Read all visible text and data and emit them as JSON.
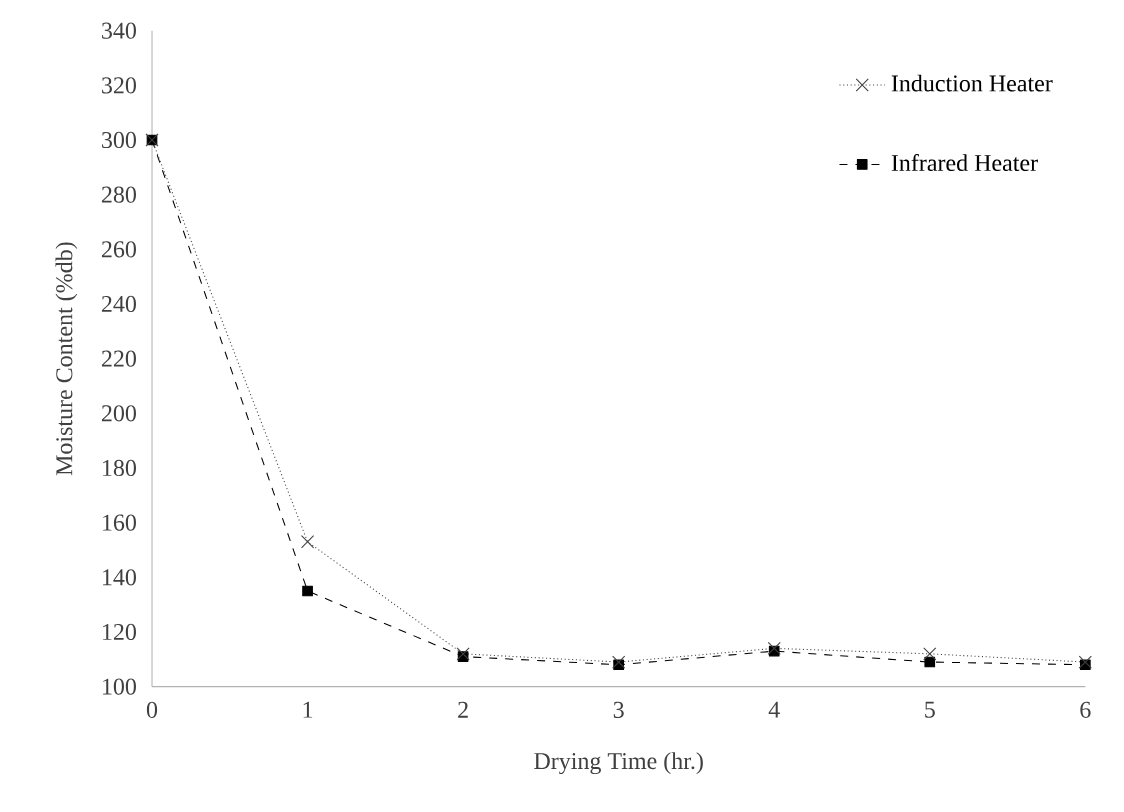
{
  "chart_data": {
    "type": "line",
    "xlabel": "Drying Time (hr.)",
    "ylabel": "Moisture Content (%db)",
    "x": [
      0,
      1,
      2,
      3,
      4,
      5,
      6
    ],
    "series": [
      {
        "name": "Induction Heater",
        "color": "#404040",
        "marker": "cross",
        "line_style": "dotted",
        "values": [
          300,
          153,
          112,
          109,
          114,
          112,
          109
        ]
      },
      {
        "name": "Infrared Heater",
        "color": "#000000",
        "marker": "square",
        "line_style": "dashed",
        "values": [
          300,
          135,
          111,
          108,
          113,
          109,
          108
        ]
      }
    ],
    "xlim": [
      0,
      6
    ],
    "xticks": [
      0,
      1,
      2,
      3,
      4,
      5,
      6
    ],
    "ylim": [
      100,
      340
    ],
    "yticks": [
      100,
      120,
      140,
      160,
      180,
      200,
      220,
      240,
      260,
      280,
      300,
      320,
      340
    ],
    "grid": false,
    "legend": "top right"
  }
}
